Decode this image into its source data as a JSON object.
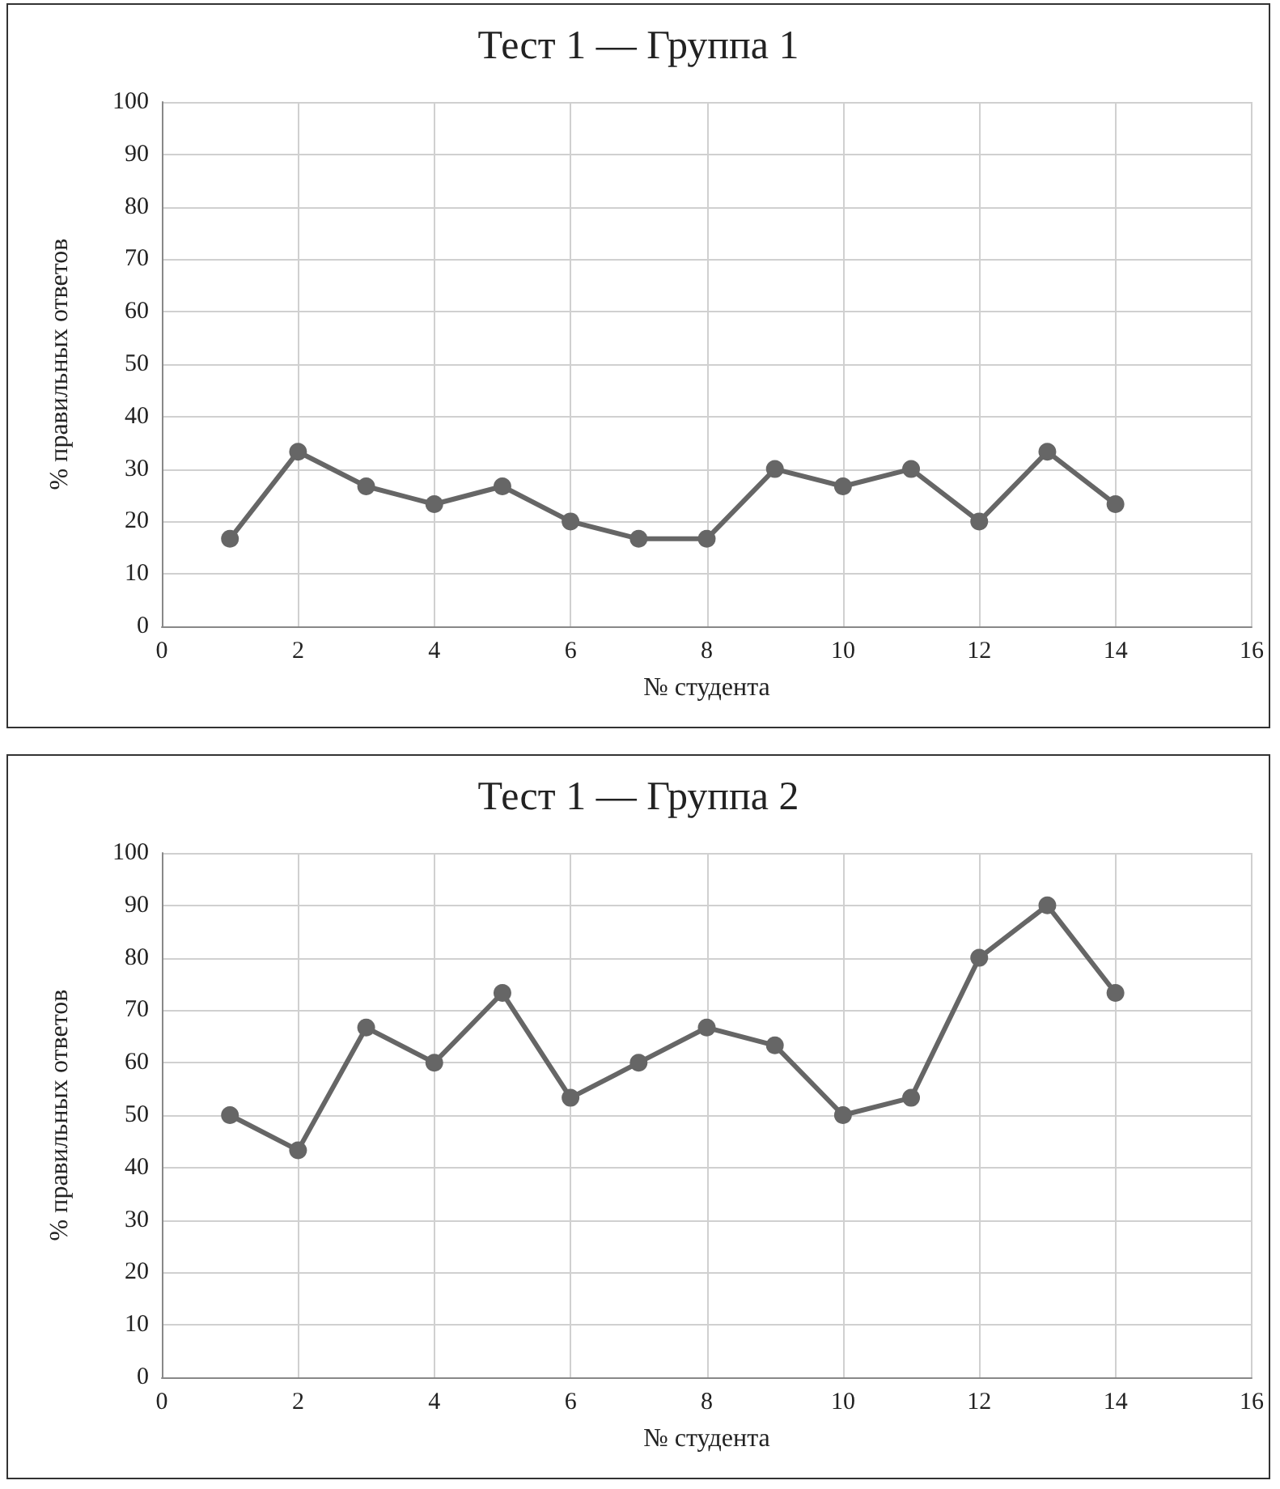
{
  "chart_data": [
    {
      "type": "line",
      "title": "Тест 1 — Группа 1",
      "xlabel": "№ студента",
      "ylabel": "% правильных ответов",
      "x": [
        1,
        2,
        3,
        4,
        5,
        6,
        7,
        8,
        9,
        10,
        11,
        12,
        13,
        14
      ],
      "series": [
        {
          "color": "#666666",
          "values": [
            16.7,
            33.3,
            26.7,
            23.3,
            26.7,
            20,
            16.7,
            16.7,
            30,
            26.7,
            30,
            20,
            33.3,
            23.3
          ]
        }
      ],
      "xlim": [
        0,
        16
      ],
      "xticks": [
        0,
        2,
        4,
        6,
        8,
        10,
        12,
        14,
        16
      ],
      "ylim": [
        0,
        100
      ],
      "yticks": [
        0,
        10,
        20,
        30,
        40,
        50,
        60,
        70,
        80,
        90,
        100
      ],
      "grid": true,
      "marker": "circle",
      "line_style": "solid"
    },
    {
      "type": "line",
      "title": "Тест 1 — Группа 2",
      "xlabel": "№ студента",
      "ylabel": "% правильных ответов",
      "x": [
        1,
        2,
        3,
        4,
        5,
        6,
        7,
        8,
        9,
        10,
        11,
        12,
        13,
        14
      ],
      "series": [
        {
          "color": "#666666",
          "values": [
            50,
            43.3,
            66.7,
            60,
            73.3,
            53.3,
            60,
            66.7,
            63.3,
            50,
            53.3,
            80,
            90,
            73.3
          ]
        }
      ],
      "xlim": [
        0,
        16
      ],
      "xticks": [
        0,
        2,
        4,
        6,
        8,
        10,
        12,
        14,
        16
      ],
      "ylim": [
        0,
        100
      ],
      "yticks": [
        0,
        10,
        20,
        30,
        40,
        50,
        60,
        70,
        80,
        90,
        100
      ],
      "grid": true,
      "marker": "circle",
      "line_style": "solid"
    }
  ]
}
